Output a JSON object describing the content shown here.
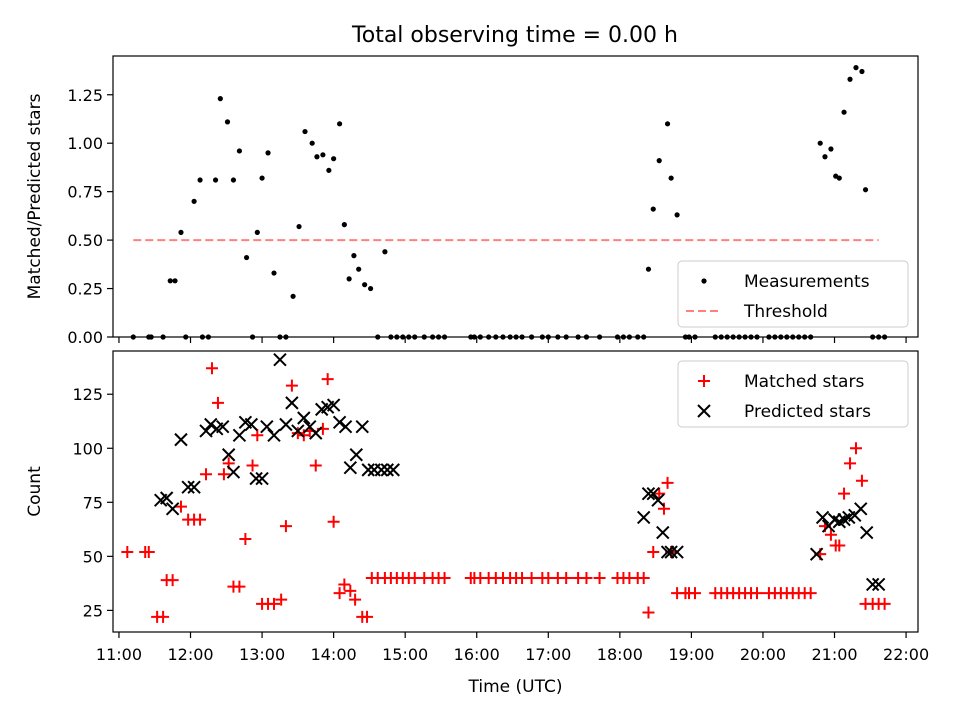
{
  "title": "Total observing time = 0.00 h",
  "colors": {
    "measurement": "#000000",
    "threshold": "#ff8080",
    "matched": "#ff0000",
    "predicted": "#000000"
  },
  "chart_data": [
    {
      "type": "scatter",
      "name": "ratio-panel",
      "ylabel": "Matched/Predicted stars",
      "xlabel": "",
      "xlim": [
        "10:55",
        "22:10"
      ],
      "ylim": [
        0,
        1.45
      ],
      "yticks": [
        0.0,
        0.25,
        0.5,
        0.75,
        1.0,
        1.25
      ],
      "ytick_labels": [
        "0.00",
        "0.25",
        "0.50",
        "0.75",
        "1.00",
        "1.25"
      ],
      "grid": false,
      "legend": "bottom-right",
      "series": [
        {
          "name": "Measurements",
          "marker": "dot",
          "x": [
            "11:12",
            "11:25",
            "11:27",
            "11:37",
            "11:43",
            "11:47",
            "11:52",
            "11:56",
            "12:03",
            "12:08",
            "12:10",
            "12:15",
            "12:21",
            "12:25",
            "12:31",
            "12:36",
            "12:41",
            "12:47",
            "12:52",
            "12:56",
            "13:00",
            "13:05",
            "13:10",
            "13:15",
            "13:20",
            "13:26",
            "13:31",
            "13:36",
            "13:42",
            "13:46",
            "13:51",
            "13:56",
            "14:00",
            "14:05",
            "14:09",
            "14:13",
            "14:17",
            "14:21",
            "14:26",
            "14:31",
            "14:37",
            "14:43",
            "14:48",
            "14:53",
            "14:58",
            "15:03",
            "15:08",
            "15:16",
            "15:23",
            "15:28",
            "15:33",
            "15:55",
            "15:58",
            "16:03",
            "16:10",
            "16:16",
            "16:22",
            "16:28",
            "16:33",
            "16:38",
            "16:46",
            "16:55",
            "17:00",
            "17:08",
            "17:15",
            "17:25",
            "17:32",
            "17:43",
            "17:58",
            "18:03",
            "18:08",
            "18:15",
            "18:20",
            "18:24",
            "18:28",
            "18:33",
            "18:40",
            "18:43",
            "18:48",
            "18:55",
            "18:58",
            "19:03",
            "19:20",
            "19:25",
            "19:30",
            "19:35",
            "19:40",
            "19:45",
            "19:50",
            "19:55",
            "20:05",
            "20:10",
            "20:15",
            "20:20",
            "20:25",
            "20:30",
            "20:35",
            "20:40",
            "20:48",
            "20:52",
            "20:57",
            "21:01",
            "21:04",
            "21:08",
            "21:13",
            "21:18",
            "21:23",
            "21:26",
            "21:32",
            "21:37",
            "21:42"
          ],
          "y": [
            0.0,
            0.0,
            0.0,
            0.0,
            0.29,
            0.29,
            0.54,
            0.0,
            0.7,
            0.81,
            0.0,
            0.0,
            0.81,
            1.23,
            1.11,
            0.81,
            0.96,
            0.41,
            0.0,
            0.54,
            0.82,
            0.95,
            0.33,
            0.0,
            0.0,
            0.21,
            0.57,
            1.06,
            1.0,
            0.93,
            0.94,
            0.86,
            0.92,
            1.1,
            0.58,
            0.3,
            0.42,
            0.35,
            0.27,
            0.25,
            0.0,
            0.44,
            0.0,
            0.0,
            0.0,
            0.0,
            0.0,
            0.0,
            0.0,
            0.0,
            0.0,
            0.0,
            0.0,
            0.0,
            0.0,
            0.0,
            0.0,
            0.0,
            0.0,
            0.0,
            0.0,
            0.0,
            0.0,
            0.0,
            0.0,
            0.0,
            0.0,
            0.0,
            0.0,
            0.0,
            0.0,
            0.0,
            0.0,
            0.35,
            0.66,
            0.91,
            1.1,
            0.82,
            0.63,
            0.0,
            0.0,
            0.0,
            0.0,
            0.0,
            0.0,
            0.0,
            0.0,
            0.0,
            0.0,
            0.0,
            0.0,
            0.0,
            0.0,
            0.0,
            0.0,
            0.0,
            0.0,
            0.0,
            1.0,
            0.93,
            0.97,
            0.83,
            0.82,
            1.16,
            1.33,
            1.39,
            1.37,
            0.76,
            0.0,
            0.0,
            0.0
          ]
        },
        {
          "name": "Threshold",
          "style": "dashed",
          "x": [
            "11:12",
            "21:37"
          ],
          "y": [
            0.5,
            0.5
          ]
        }
      ]
    },
    {
      "type": "scatter",
      "name": "count-panel",
      "ylabel": "Count",
      "xlabel": "Time (UTC)",
      "xlim": [
        "10:55",
        "22:10"
      ],
      "xticks": [
        "11:00",
        "12:00",
        "13:00",
        "14:00",
        "15:00",
        "16:00",
        "17:00",
        "18:00",
        "19:00",
        "20:00",
        "21:00",
        "22:00"
      ],
      "ylim": [
        15,
        145
      ],
      "yticks": [
        25,
        50,
        75,
        100,
        125
      ],
      "ytick_labels": [
        "25",
        "50",
        "75",
        "100",
        "125"
      ],
      "grid": false,
      "legend": "top-right",
      "series": [
        {
          "name": "Matched stars",
          "marker": "plus",
          "x": [
            "11:07",
            "11:22",
            "11:25",
            "11:32",
            "11:37",
            "11:40",
            "11:45",
            "11:52",
            "11:58",
            "12:03",
            "12:08",
            "12:13",
            "12:18",
            "12:23",
            "12:28",
            "12:32",
            "12:36",
            "12:41",
            "12:46",
            "12:52",
            "12:56",
            "13:00",
            "13:05",
            "13:10",
            "13:16",
            "13:20",
            "13:25",
            "13:30",
            "13:35",
            "13:40",
            "13:45",
            "13:51",
            "13:55",
            "14:00",
            "14:05",
            "14:09",
            "14:14",
            "14:18",
            "14:24",
            "14:28",
            "14:32",
            "14:37",
            "14:43",
            "14:48",
            "14:53",
            "14:58",
            "15:03",
            "15:08",
            "15:16",
            "15:23",
            "15:28",
            "15:33",
            "15:55",
            "15:58",
            "16:03",
            "16:10",
            "16:16",
            "16:22",
            "16:28",
            "16:33",
            "16:38",
            "16:46",
            "16:55",
            "17:00",
            "17:08",
            "17:15",
            "17:25",
            "17:32",
            "17:43",
            "17:58",
            "18:03",
            "18:08",
            "18:15",
            "18:20",
            "18:24",
            "18:28",
            "18:33",
            "18:37",
            "18:40",
            "18:43",
            "18:48",
            "18:55",
            "18:58",
            "19:03",
            "19:20",
            "19:25",
            "19:30",
            "19:35",
            "19:40",
            "19:45",
            "19:50",
            "19:55",
            "20:05",
            "20:10",
            "20:15",
            "20:20",
            "20:25",
            "20:30",
            "20:35",
            "20:40",
            "20:48",
            "20:52",
            "20:57",
            "21:01",
            "21:04",
            "21:08",
            "21:13",
            "21:18",
            "21:23",
            "21:26",
            "21:32",
            "21:37",
            "21:42"
          ],
          "y": [
            52,
            52,
            52,
            22,
            22,
            39,
            39,
            73,
            67,
            67,
            67,
            88,
            137,
            121,
            88,
            93,
            36,
            36,
            58,
            92,
            106,
            28,
            28,
            28,
            30,
            64,
            129,
            107,
            106,
            108,
            92,
            109,
            132,
            66,
            33,
            37,
            34,
            30,
            22,
            22,
            40,
            40,
            40,
            40,
            40,
            40,
            40,
            40,
            40,
            40,
            40,
            40,
            40,
            40,
            40,
            40,
            40,
            40,
            40,
            40,
            40,
            40,
            40,
            40,
            40,
            40,
            40,
            40,
            40,
            40,
            40,
            40,
            40,
            40,
            24,
            52,
            79,
            72,
            84,
            52,
            33,
            33,
            33,
            33,
            33,
            33,
            33,
            33,
            33,
            33,
            33,
            33,
            33,
            33,
            33,
            33,
            33,
            33,
            33,
            33,
            51,
            64,
            60,
            55,
            55,
            79,
            93,
            100,
            85,
            28,
            28,
            28,
            28
          ]
        },
        {
          "name": "Predicted stars",
          "marker": "x",
          "x": [
            "11:35",
            "11:40",
            "11:45",
            "11:52",
            "11:58",
            "12:03",
            "12:13",
            "12:17",
            "12:22",
            "12:27",
            "12:32",
            "12:36",
            "12:41",
            "12:46",
            "12:51",
            "12:55",
            "13:00",
            "13:04",
            "13:10",
            "13:15",
            "13:20",
            "13:25",
            "13:30",
            "13:35",
            "13:40",
            "13:45",
            "13:50",
            "13:55",
            "14:00",
            "14:05",
            "14:10",
            "14:14",
            "14:19",
            "14:24",
            "14:29",
            "14:34",
            "14:40",
            "14:45",
            "14:50",
            "18:20",
            "18:24",
            "18:28",
            "18:32",
            "18:36",
            "18:40",
            "18:43",
            "18:48",
            "20:45",
            "20:50",
            "20:55",
            "21:00",
            "21:04",
            "21:08",
            "21:12",
            "21:17",
            "21:22",
            "21:27",
            "21:32",
            "21:37"
          ],
          "y": [
            76,
            77,
            72,
            104,
            82,
            82,
            108,
            111,
            109,
            110,
            97,
            89,
            106,
            112,
            111,
            86,
            86,
            110,
            106,
            141,
            111,
            121,
            108,
            114,
            110,
            107,
            118,
            119,
            120,
            112,
            110,
            91,
            97,
            110,
            90,
            90,
            90,
            90,
            90,
            68,
            79,
            79,
            76,
            61,
            52,
            52,
            52,
            51,
            68,
            64,
            67,
            66,
            67,
            68,
            69,
            72,
            61,
            37,
            37
          ]
        }
      ]
    }
  ]
}
